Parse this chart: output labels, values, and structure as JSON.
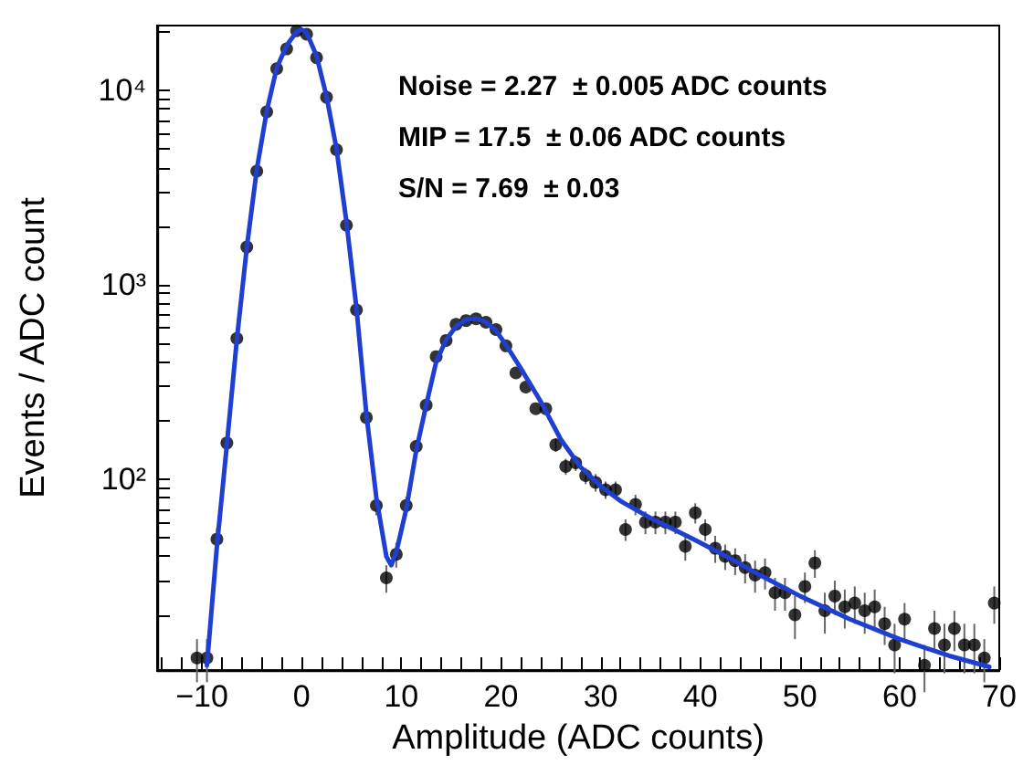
{
  "chart_data": {
    "type": "scatter",
    "xlabel": "Amplitude (ADC counts)",
    "ylabel": "Events / ADC count",
    "annotations": [
      "Noise = 2.27  ± 0.005 ADC counts",
      "MIP = 17.5  ± 0.06 ADC counts",
      "S/N = 7.69  ± 0.03"
    ],
    "log": "y",
    "grid": false,
    "xlim": [
      -14.5,
      70
    ],
    "ylim": [
      10.4,
      21500
    ],
    "xticks": [
      {
        "value": -14,
        "label": null
      },
      {
        "value": -12,
        "label": null
      },
      {
        "value": -10,
        "label": "−10"
      },
      {
        "value": -8,
        "label": null
      },
      {
        "value": -6,
        "label": null
      },
      {
        "value": -4,
        "label": null
      },
      {
        "value": -2,
        "label": null
      },
      0,
      {
        "value": 2,
        "label": null
      },
      {
        "value": 4,
        "label": null
      },
      {
        "value": 6,
        "label": null
      },
      {
        "value": 8,
        "label": null
      },
      10,
      {
        "value": 12,
        "label": null
      },
      {
        "value": 14,
        "label": null
      },
      {
        "value": 16,
        "label": null
      },
      {
        "value": 18,
        "label": null
      },
      20,
      {
        "value": 22,
        "label": null
      },
      {
        "value": 24,
        "label": null
      },
      {
        "value": 26,
        "label": null
      },
      {
        "value": 28,
        "label": null
      },
      30,
      {
        "value": 32,
        "label": null
      },
      {
        "value": 34,
        "label": null
      },
      {
        "value": 36,
        "label": null
      },
      {
        "value": 38,
        "label": null
      },
      40,
      {
        "value": 42,
        "label": null
      },
      {
        "value": 44,
        "label": null
      },
      {
        "value": 46,
        "label": null
      },
      {
        "value": 48,
        "label": null
      },
      50,
      {
        "value": 52,
        "label": null
      },
      {
        "value": 54,
        "label": null
      },
      {
        "value": 56,
        "label": null
      },
      {
        "value": 58,
        "label": null
      },
      60,
      {
        "value": 62,
        "label": null
      },
      {
        "value": 64,
        "label": null
      },
      {
        "value": 66,
        "label": null
      },
      {
        "value": 68,
        "label": null
      },
      70
    ],
    "yticks": [
      {
        "value": 20,
        "label": null
      },
      {
        "value": 30,
        "label": null
      },
      {
        "value": 40,
        "label": null
      },
      {
        "value": 50,
        "label": null
      },
      {
        "value": 60,
        "label": null
      },
      {
        "value": 70,
        "label": null
      },
      {
        "value": 80,
        "label": null
      },
      {
        "value": 90,
        "label": null
      },
      {
        "value": 100,
        "label": "10²"
      },
      {
        "value": 200,
        "label": null
      },
      {
        "value": 300,
        "label": null
      },
      {
        "value": 400,
        "label": null
      },
      {
        "value": 500,
        "label": null
      },
      {
        "value": 600,
        "label": null
      },
      {
        "value": 700,
        "label": null
      },
      {
        "value": 800,
        "label": null
      },
      {
        "value": 900,
        "label": null
      },
      {
        "value": 1000,
        "label": "10³"
      },
      {
        "value": 2000,
        "label": null
      },
      {
        "value": 3000,
        "label": null
      },
      {
        "value": 4000,
        "label": null
      },
      {
        "value": 5000,
        "label": null
      },
      {
        "value": 6000,
        "label": null
      },
      {
        "value": 7000,
        "label": null
      },
      {
        "value": 8000,
        "label": null
      },
      {
        "value": 9000,
        "label": null
      },
      {
        "value": 10000,
        "label": "10⁴"
      },
      {
        "value": 20000,
        "label": null
      }
    ],
    "series": [
      {
        "color": "#000000",
        "marker": "circle",
        "x": [
          -10.5,
          -9.5,
          -8.5,
          -7.5,
          -6.5,
          -5.5,
          -4.5,
          -3.5,
          -2.5,
          -1.5,
          -0.5,
          0.5,
          1.5,
          2.5,
          3.5,
          4.5,
          5.5,
          6.5,
          7.5,
          8.5,
          9.5,
          10.5,
          11.5,
          12.5,
          13.5,
          14.5,
          15.5,
          16.5,
          17.5,
          18.5,
          19.5,
          20.5,
          21.5,
          22.5,
          23.5,
          24.5,
          25.5,
          26.5,
          27.5,
          28.5,
          29.5,
          30.5,
          31.5,
          32.5,
          33.5,
          34.5,
          35.5,
          36.5,
          37.5,
          38.5,
          39.5,
          40.5,
          41.5,
          42.5,
          43.5,
          44.5,
          45.5,
          46.5,
          47.5,
          48.5,
          49.5,
          50.5,
          51.5,
          52.5,
          53.5,
          54.5,
          55.5,
          56.5,
          57.5,
          58.5,
          59.5,
          60.5,
          62.5,
          63.5,
          64.5,
          65.5,
          66.5,
          67.5,
          68.5,
          69.5
        ],
        "values": [
          12,
          12,
          49,
          153,
          528,
          1560,
          3830,
          7740,
          12900,
          16300,
          20200,
          19400,
          14700,
          9190,
          4940,
          2020,
          741,
          207,
          73,
          31,
          41,
          73,
          147,
          240,
          426,
          516,
          625,
          653,
          667,
          640,
          587,
          484,
          351,
          297,
          230,
          230,
          150,
          116,
          121,
          104,
          96,
          88,
          88,
          55,
          74,
          60,
          60,
          60,
          60,
          45,
          67,
          55,
          44,
          40,
          38,
          35,
          32,
          33,
          26,
          26,
          20,
          28,
          37,
          21,
          25,
          22,
          23,
          21,
          22,
          18,
          14,
          19,
          11,
          17,
          14,
          17,
          14,
          14,
          12,
          23
        ],
        "errors": [
          3,
          3,
          7,
          12,
          null,
          null,
          null,
          null,
          null,
          null,
          null,
          null,
          null,
          null,
          null,
          null,
          null,
          14,
          8,
          5,
          6,
          8,
          12,
          null,
          null,
          null,
          null,
          null,
          null,
          null,
          null,
          null,
          null,
          null,
          null,
          null,
          12,
          11,
          11,
          10,
          10,
          9,
          9,
          7,
          9,
          8,
          8,
          8,
          8,
          7,
          8,
          7,
          7,
          6,
          6,
          6,
          6,
          6,
          5,
          5,
          5,
          5,
          6,
          5,
          5,
          5,
          5,
          5,
          5,
          4,
          4,
          4,
          3,
          4,
          4,
          4,
          4,
          4,
          3,
          5
        ]
      },
      {
        "type": "line",
        "color": "#1f3fd0",
        "line_style": "solid",
        "marker": "none",
        "x": [
          -9.5,
          -8.5,
          -7.5,
          -6.5,
          -5.5,
          -4.5,
          -3.5,
          -2.5,
          -1.5,
          -0.5,
          0,
          0.5,
          1.5,
          2.5,
          3.5,
          4.5,
          5.5,
          6.5,
          7.5,
          8.5,
          9,
          9.5,
          10.5,
          11.5,
          12.5,
          13.5,
          14.5,
          15.5,
          16.5,
          17.5,
          18.5,
          19.5,
          20.5,
          22,
          24,
          26,
          28,
          30,
          32,
          35,
          38,
          40,
          43,
          46,
          50,
          55,
          60,
          65,
          69
        ],
        "values": [
          11,
          45,
          150,
          520,
          1550,
          3900,
          7800,
          13000,
          17000,
          20000,
          20500,
          19800,
          15000,
          9300,
          5000,
          2100,
          760,
          215,
          80,
          40,
          36,
          42,
          70,
          140,
          240,
          400,
          520,
          610,
          660,
          670,
          640,
          580,
          490,
          370,
          250,
          160,
          115,
          92,
          77,
          63,
          53,
          47,
          39,
          32,
          25,
          19,
          15,
          12.3,
          10.8
        ]
      }
    ]
  }
}
